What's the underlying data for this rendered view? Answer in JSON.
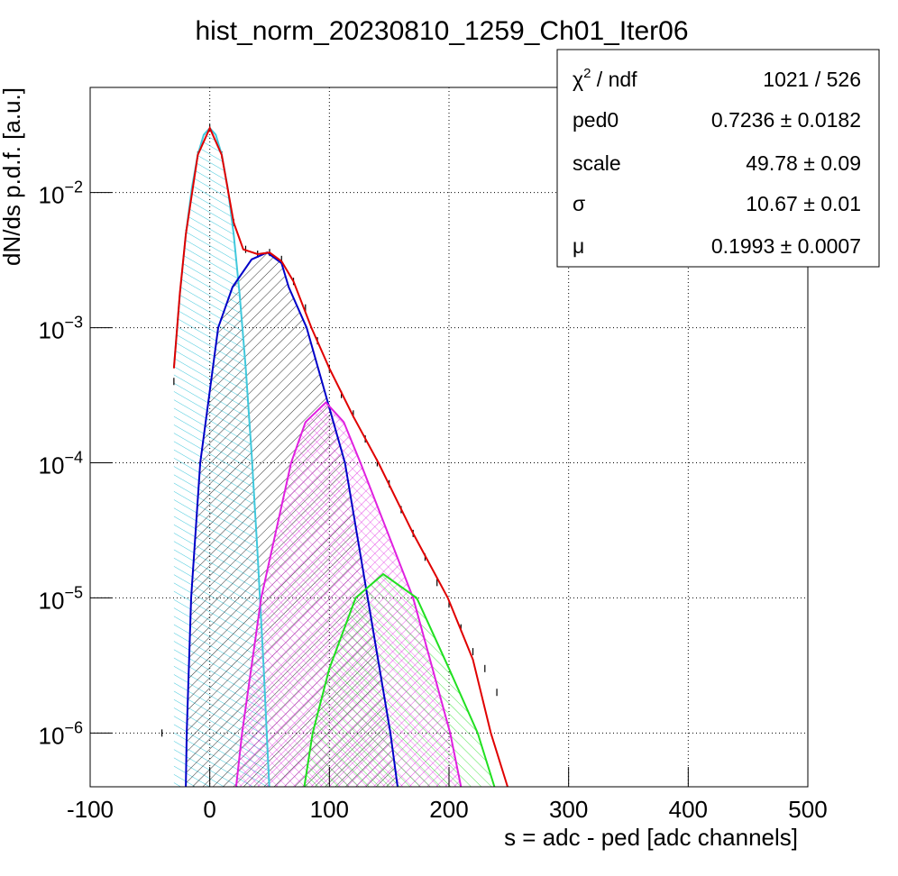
{
  "chart_data": {
    "type": "line",
    "title": "hist_norm_20230810_1259_Ch01_Iter06",
    "x_label": "s = adc - ped [adc channels]",
    "y_label": "dN/ds p.d.f. [a.u.]",
    "xlim": [
      -100,
      500
    ],
    "xticks": [
      -100,
      0,
      100,
      200,
      300,
      400,
      500
    ],
    "ylim": [
      4e-07,
      0.06
    ],
    "log_y": true,
    "yticks": [
      {
        "value": 0.01,
        "label": "10",
        "sup": "−2"
      },
      {
        "value": 0.001,
        "label": "10",
        "sup": "−3"
      },
      {
        "value": 0.0001,
        "label": "10",
        "sup": "−4"
      },
      {
        "value": 1e-05,
        "label": "10",
        "sup": "−5"
      },
      {
        "value": 1e-06,
        "label": "10",
        "sup": "−6"
      }
    ],
    "grid": true,
    "series": [
      {
        "color": "#000000",
        "style": "points",
        "x": [
          -40,
          -30,
          -20,
          -10,
          0,
          10,
          20,
          30,
          40,
          50,
          60,
          70,
          80,
          90,
          100,
          110,
          120,
          130,
          140,
          150,
          160,
          170,
          180,
          190,
          200,
          210,
          220,
          230,
          240
        ],
        "values": [
          1e-06,
          0.0004,
          0.005,
          0.019,
          0.03,
          0.019,
          0.006,
          0.0038,
          0.0035,
          0.0036,
          0.0032,
          0.0022,
          0.0014,
          0.0008,
          0.0005,
          0.00032,
          0.00023,
          0.00015,
          0.0001,
          7e-05,
          4.5e-05,
          3e-05,
          2e-05,
          1.3e-05,
          9e-06,
          6e-06,
          4e-06,
          3e-06,
          2e-06
        ]
      },
      {
        "color": "#40c8dc",
        "style": "line",
        "hatch": "cyan",
        "x": [
          -30,
          -25,
          -20,
          -15,
          -10,
          -5,
          0,
          5,
          10,
          15,
          20,
          25,
          30,
          35,
          40,
          45,
          50
        ],
        "values": [
          0.000507,
          0.00176,
          0.00489,
          0.0108,
          0.0191,
          0.0268,
          0.03,
          0.0268,
          0.0191,
          0.0108,
          0.00489,
          0.00176,
          0.000507,
          0.000116,
          2.12e-05,
          3.09e-06,
          3.57e-07
        ]
      },
      {
        "color": "#0000c8",
        "style": "line",
        "hatch": "black",
        "x": [
          -20,
          -19.3,
          -15.6,
          -8,
          7,
          19,
          35,
          48,
          60,
          66,
          81,
          113,
          132,
          151,
          157
        ],
        "values": [
          4e-07,
          1e-06,
          1e-05,
          0.0001,
          0.001,
          0.002,
          0.0032,
          0.0036,
          0.003,
          0.002,
          0.001,
          0.0001,
          1e-05,
          1e-06,
          4e-07
        ]
      },
      {
        "color": "#e020e0",
        "style": "line",
        "hatch": "magenta",
        "x": [
          22,
          27,
          43,
          68,
          80,
          97,
          112,
          126,
          170,
          201,
          210
        ],
        "values": [
          4e-07,
          1e-06,
          1e-05,
          0.0001,
          0.0002,
          0.00028,
          0.0002,
          0.0001,
          1e-05,
          1e-06,
          4e-07
        ]
      },
      {
        "color": "#20e020",
        "style": "line",
        "hatch": "green",
        "x": [
          79,
          86,
          100,
          122,
          145,
          173,
          200,
          224,
          238
        ],
        "values": [
          4e-07,
          1e-06,
          3e-06,
          1e-05,
          1.5e-05,
          1e-05,
          3e-06,
          1e-06,
          4e-07
        ]
      },
      {
        "color": "#e00000",
        "style": "line",
        "x": [
          -30,
          -25,
          -20,
          -10,
          0,
          10,
          20,
          28,
          40,
          50,
          60,
          70,
          85,
          100,
          120,
          141,
          170,
          199,
          220,
          235,
          249
        ],
        "values": [
          0.0005,
          0.0018,
          0.0049,
          0.019,
          0.03,
          0.019,
          0.006,
          0.0038,
          0.0035,
          0.0036,
          0.0031,
          0.0022,
          0.001,
          0.0005,
          0.00022,
          0.0001,
          3e-05,
          1e-05,
          3.5e-06,
          1e-06,
          4e-07
        ]
      }
    ],
    "stats": [
      {
        "label": "χ",
        "sup": "2",
        "label_rest": " / ndf",
        "value": "1021 / 526"
      },
      {
        "label": "ped0",
        "value": "0.7236 ± 0.0182"
      },
      {
        "label": "scale",
        "value": "49.78 ± 0.09"
      },
      {
        "label": "σ",
        "value": "10.67 ± 0.01"
      },
      {
        "label": "μ",
        "value": "0.1993 ± 0.0007"
      }
    ]
  }
}
